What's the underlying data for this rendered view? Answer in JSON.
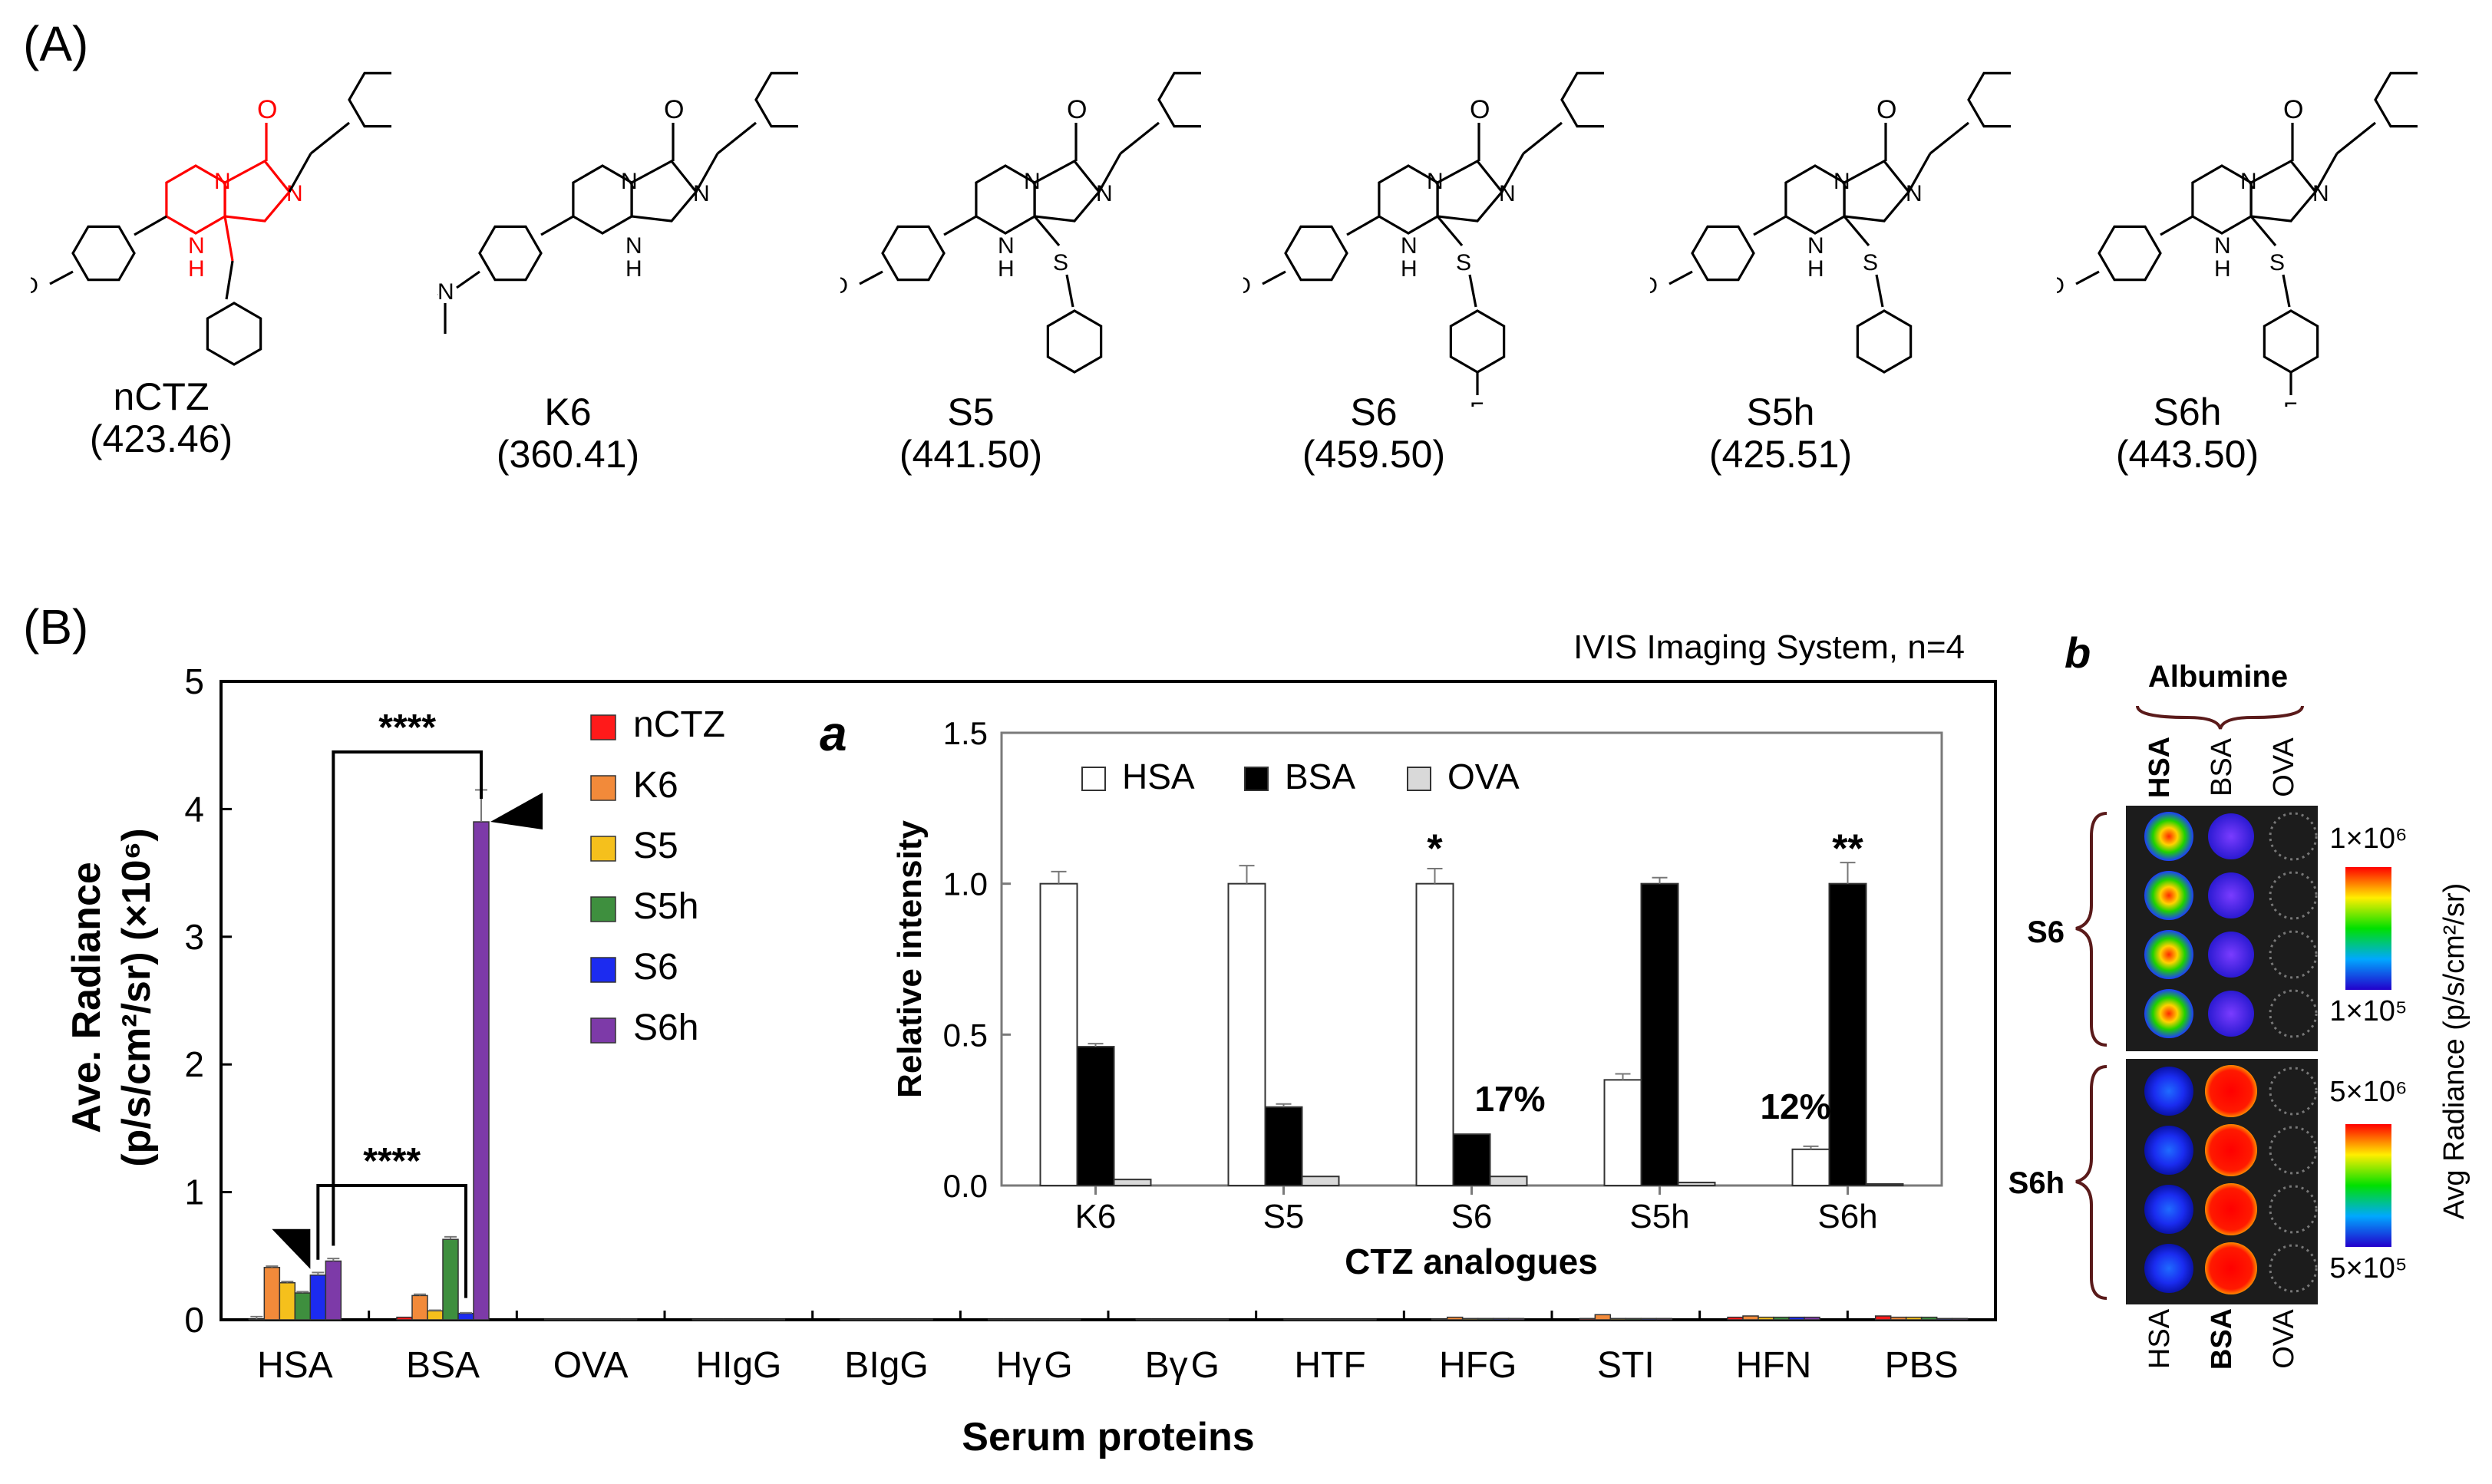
{
  "panel_a": {
    "label": "(A)",
    "compounds": [
      {
        "name": "nCTZ",
        "mw": "(423.46)",
        "aryl": "OH",
        "n8": "benzyl",
        "c6": "oh"
      },
      {
        "name": "K6",
        "mw": "(360.41)",
        "aryl": "OH",
        "n8": "none",
        "c6": "nme2"
      },
      {
        "name": "S5",
        "mw": "(441.50)",
        "aryl": "OH",
        "n8": "sph",
        "c6": "oh"
      },
      {
        "name": "S6",
        "mw": "(459.50)",
        "aryl": "OH",
        "n8": "sphf",
        "c6": "oh"
      },
      {
        "name": "S5h",
        "mw": "(425.51)",
        "aryl": "H",
        "n8": "sph",
        "c6": "oh"
      },
      {
        "name": "S6h",
        "mw": "(443.50)",
        "aryl": "H",
        "n8": "sphf",
        "c6": "oh"
      }
    ],
    "atom_labels": {
      "oh": "OH",
      "ho": "HO",
      "o": "O",
      "n": "N",
      "h": "H",
      "s": "S",
      "f": "F"
    },
    "core_highlight_color": "#ff0000"
  },
  "panel_b": {
    "label": "(B)",
    "system_note": "IVIS Imaging System, n=4"
  },
  "chart_data": [
    {
      "type": "bar",
      "id": "main",
      "categories": [
        "HSA",
        "BSA",
        "OVA",
        "HIgG",
        "BIgG",
        "Hγ G",
        "Bγ G",
        "HTF",
        "HFG",
        "STI",
        "HFN",
        "PBS"
      ],
      "xlabel": "Serum proteins",
      "ylabel_line1": "Ave. Radiance",
      "ylabel_line2": "(p/s/cm²/sr) (×10⁶)",
      "ylim": [
        0,
        5
      ],
      "yticks": [
        "0",
        "1",
        "2",
        "3",
        "4",
        "5"
      ],
      "series": [
        {
          "name": "nCTZ",
          "color": "#ff1a1a",
          "values": [
            0.005,
            0.02,
            0.005,
            0.004,
            0.004,
            0.004,
            0.004,
            0.004,
            0.006,
            0.01,
            0.02,
            0.03
          ]
        },
        {
          "name": "K6",
          "color": "#f28a3a",
          "values": [
            0.41,
            0.19,
            0.005,
            0.004,
            0.004,
            0.004,
            0.004,
            0.004,
            0.02,
            0.04,
            0.03,
            0.02
          ]
        },
        {
          "name": "S5",
          "color": "#f5c01c",
          "values": [
            0.29,
            0.07,
            0.005,
            0.004,
            0.004,
            0.004,
            0.004,
            0.004,
            0.01,
            0.01,
            0.02,
            0.02
          ]
        },
        {
          "name": "S5h",
          "color": "#3e8f3e",
          "values": [
            0.21,
            0.63,
            0.005,
            0.004,
            0.004,
            0.004,
            0.004,
            0.004,
            0.01,
            0.01,
            0.02,
            0.02
          ]
        },
        {
          "name": "S6",
          "color": "#1c2bf0",
          "values": [
            0.35,
            0.05,
            0.005,
            0.004,
            0.004,
            0.004,
            0.004,
            0.004,
            0.01,
            0.01,
            0.02,
            0.01
          ]
        },
        {
          "name": "S6h",
          "color": "#7d3aa8",
          "values": [
            0.46,
            3.9,
            0.005,
            0.004,
            0.004,
            0.004,
            0.004,
            0.004,
            0.01,
            0.01,
            0.02,
            0.01
          ]
        }
      ],
      "error": {
        "HSA": [
          0.02,
          0.01,
          0.01,
          0.01,
          0.02,
          0.02
        ],
        "BSA": [
          0,
          0.01,
          0.005,
          0.02,
          0.005,
          0.25
        ]
      },
      "annotations": [
        {
          "text": "****",
          "pair": [
            "HSA:S6h",
            "BSA:S6h"
          ]
        },
        {
          "text": "****",
          "pair": [
            "HSA:S6",
            "BSA:S6"
          ]
        }
      ],
      "legend_position": "top-center"
    },
    {
      "type": "bar",
      "id": "inset_a",
      "label": "a",
      "categories": [
        "K6",
        "S5",
        "S6",
        "S5h",
        "S6h"
      ],
      "xlabel": "CTZ analogues",
      "ylabel": "Relative intensity",
      "ylim": [
        0,
        1.5
      ],
      "yticks": [
        "0.0",
        "0.5",
        "1.0",
        "1.5"
      ],
      "series": [
        {
          "name": "HSA",
          "color": "#ffffff",
          "values": [
            1.0,
            1.0,
            1.0,
            0.35,
            0.12
          ],
          "err": [
            0.04,
            0.06,
            0.05,
            0.02,
            0.01
          ]
        },
        {
          "name": "BSA",
          "color": "#000000",
          "values": [
            0.46,
            0.26,
            0.17,
            1.0,
            1.0
          ],
          "err": [
            0.01,
            0.01,
            0.0,
            0.02,
            0.07
          ]
        },
        {
          "name": "OVA",
          "color": "#d9d9d9",
          "values": [
            0.02,
            0.03,
            0.03,
            0.01,
            0.005
          ],
          "err": [
            0,
            0,
            0,
            0,
            0
          ]
        }
      ],
      "annotations": [
        {
          "text": "*",
          "category": "S6"
        },
        {
          "text": "**",
          "category": "S6h"
        },
        {
          "text": "17%",
          "category": "S6"
        },
        {
          "text": "12%",
          "category": "S6h"
        }
      ],
      "legend_position": "top-left"
    }
  ],
  "panel_b_image": {
    "label": "b",
    "group_title": "Albumine",
    "column_labels_top": [
      "HSA",
      "BSA",
      "OVA"
    ],
    "column_labels_bottom": [
      "HSA",
      "BSA",
      "OVA"
    ],
    "row_groups": [
      {
        "name": "S6",
        "scale_max": "1×10⁶",
        "scale_min": "1×10⁵"
      },
      {
        "name": "S6h",
        "scale_max": "5×10⁶",
        "scale_min": "5×10⁵"
      }
    ],
    "colorbar_label": "Avg Radiance (p/s/cm²/sr)"
  }
}
